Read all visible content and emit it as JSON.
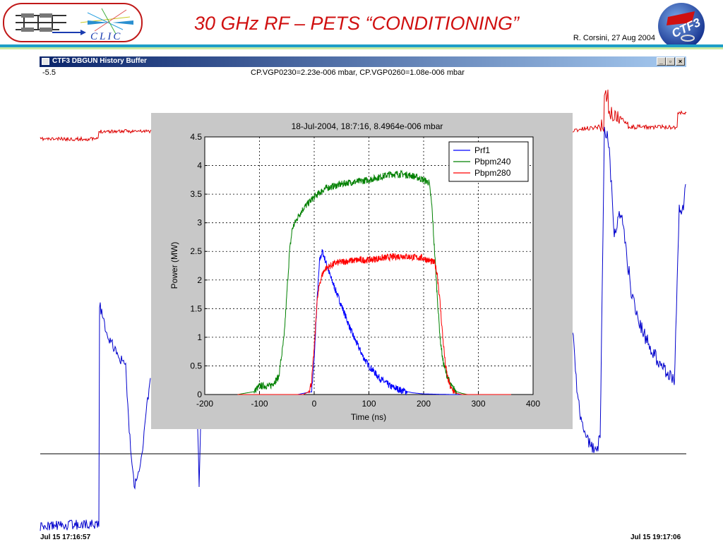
{
  "header": {
    "title": "30 GHz RF – PETS “CONDITIONING”",
    "author": "R. Corsini, 27 Aug 2004",
    "clic_logo_text": "CLIC",
    "ctf3_logo_text": "CTF3"
  },
  "window": {
    "title": "CTF3 DBGUN History Buffer",
    "buttons": [
      "_",
      "▫",
      "×"
    ]
  },
  "history_plot": {
    "y_max_label": "-5.5",
    "readout": "CP.VGP0230=2.23e-006 mbar,  CP.VGP0260=1.08e-006 mbar",
    "time_start": "Jul 15 17:16:57",
    "time_end": "Jul 15 19:17:06",
    "colors": {
      "vgp0230": "#dd0000",
      "vgp0260": "#0000cc",
      "baseline": "#000000"
    }
  },
  "chart_data": {
    "type": "line",
    "title": "18-Jul-2004,  18:7:16,   8.4964e-006 mbar",
    "xlabel": "Time (ns)",
    "ylabel": "Power (MW)",
    "xlim": [
      -200,
      400
    ],
    "ylim": [
      0,
      4.5
    ],
    "xticks": [
      -200,
      -100,
      0,
      100,
      200,
      300,
      400
    ],
    "yticks": [
      0,
      0.5,
      1,
      1.5,
      2,
      2.5,
      3,
      3.5,
      4,
      4.5
    ],
    "grid": true,
    "legend_position": "top-right",
    "series": [
      {
        "name": "Prf1",
        "color": "#0000ff",
        "x": [
          -140,
          -30,
          -5,
          0,
          5,
          10,
          15,
          20,
          30,
          40,
          50,
          60,
          70,
          80,
          90,
          100,
          120,
          140,
          160,
          180,
          200,
          250,
          300,
          360
        ],
        "y": [
          0,
          0,
          0.05,
          0.6,
          1.6,
          2.35,
          2.5,
          2.35,
          2.05,
          1.8,
          1.55,
          1.3,
          1.05,
          0.85,
          0.65,
          0.5,
          0.28,
          0.14,
          0.07,
          0.03,
          0.01,
          0,
          0,
          0
        ]
      },
      {
        "name": "Pbpm240",
        "color": "#008000",
        "x": [
          -140,
          -110,
          -100,
          -80,
          -65,
          -55,
          -45,
          -40,
          -35,
          -30,
          -20,
          -10,
          0,
          20,
          40,
          60,
          80,
          100,
          120,
          140,
          160,
          180,
          200,
          210,
          215,
          220,
          225,
          230,
          235,
          240,
          250,
          260,
          270,
          280,
          290,
          300
        ],
        "y": [
          0,
          0.05,
          0.15,
          0.15,
          0.3,
          1.0,
          2.5,
          2.9,
          3.0,
          3.1,
          3.25,
          3.35,
          3.45,
          3.6,
          3.65,
          3.7,
          3.72,
          3.75,
          3.8,
          3.85,
          3.85,
          3.82,
          3.75,
          3.7,
          3.3,
          2.5,
          1.7,
          1.0,
          0.6,
          0.4,
          0.15,
          0.05,
          0.02,
          0,
          0,
          0
        ]
      },
      {
        "name": "Pbpm280",
        "color": "#ff0000",
        "x": [
          -140,
          -20,
          -10,
          -5,
          0,
          5,
          10,
          15,
          20,
          30,
          40,
          60,
          80,
          100,
          120,
          140,
          160,
          180,
          200,
          220,
          225,
          230,
          235,
          240,
          245,
          250,
          260,
          270,
          280,
          300,
          360
        ],
        "y": [
          0,
          0,
          0.05,
          0.2,
          0.8,
          1.6,
          1.95,
          2.1,
          2.2,
          2.25,
          2.3,
          2.33,
          2.35,
          2.35,
          2.38,
          2.4,
          2.42,
          2.4,
          2.38,
          2.3,
          2.1,
          1.6,
          1.0,
          0.5,
          0.25,
          0.1,
          0.02,
          0,
          0,
          0,
          0
        ]
      }
    ]
  }
}
